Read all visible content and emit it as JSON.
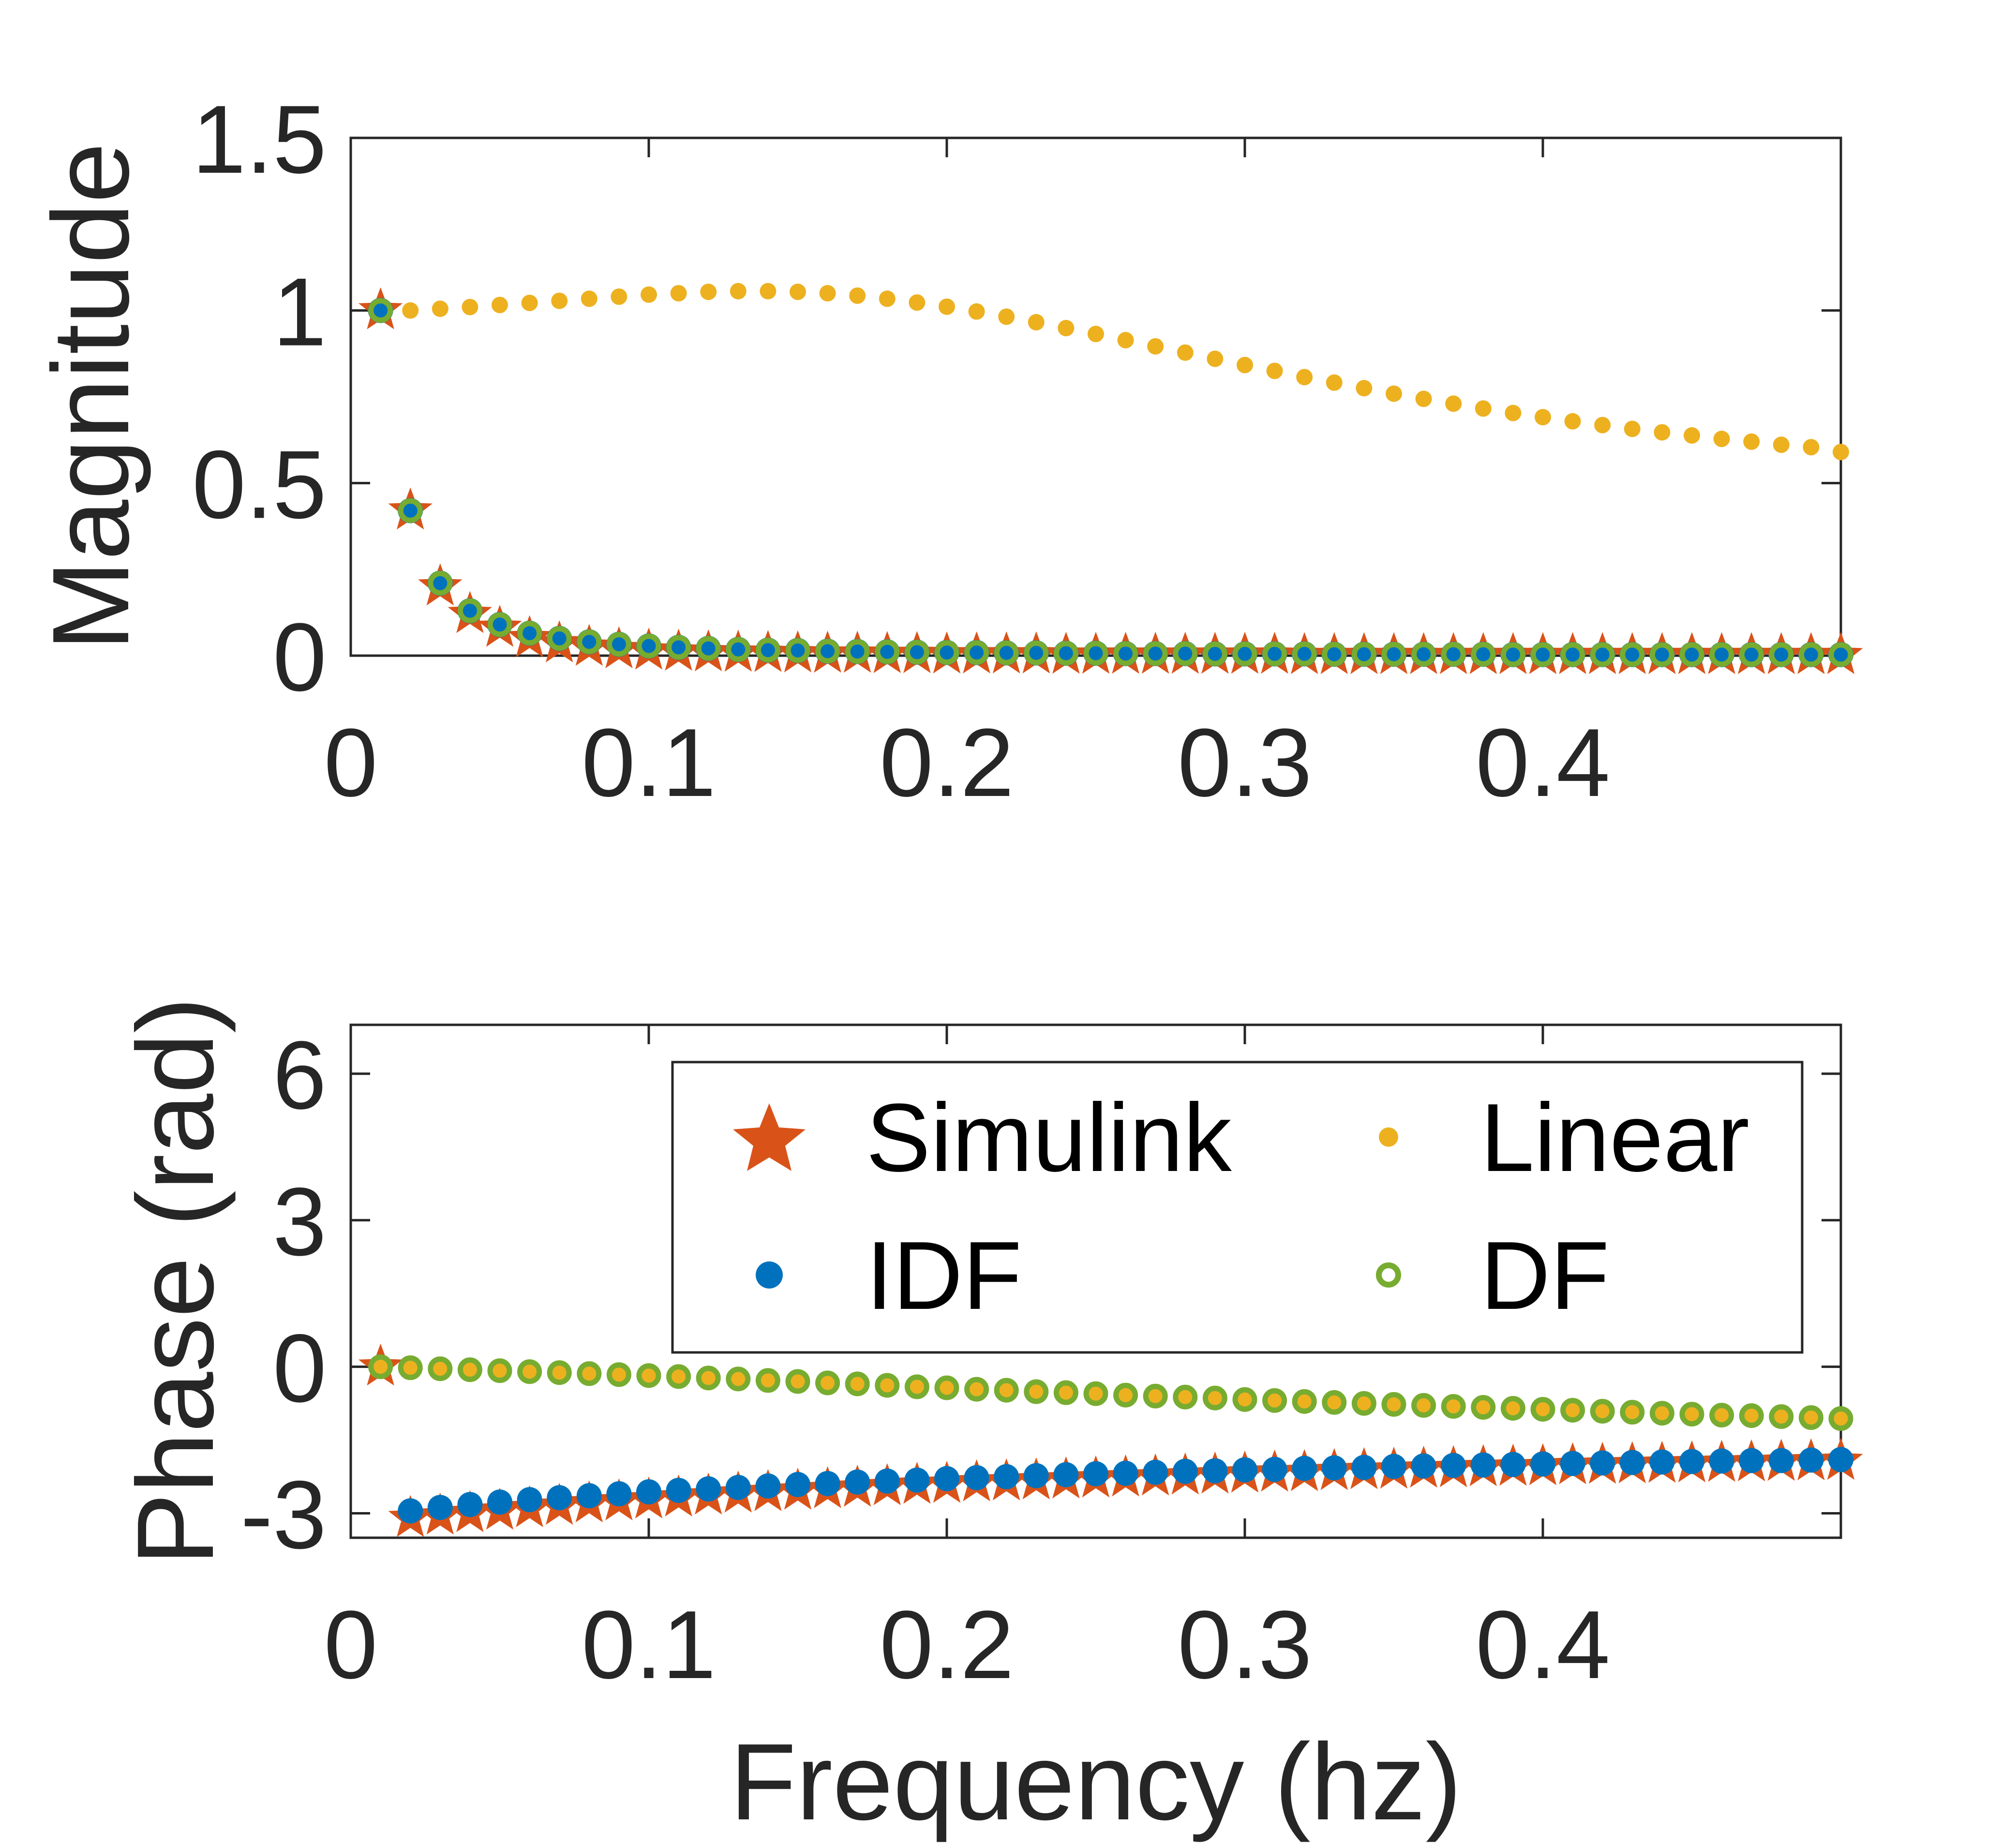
{
  "chart_data": [
    {
      "type": "scatter",
      "panel": "magnitude",
      "title": "",
      "xlabel": "",
      "ylabel": "Magnitude",
      "xlim": [
        0,
        0.5
      ],
      "ylim": [
        0,
        1.5
      ],
      "xticks": [
        0,
        0.1,
        0.2,
        0.3,
        0.4
      ],
      "xtick_labels": [
        "0",
        "0.1",
        "0.2",
        "0.3",
        "0.4"
      ],
      "yticks": [
        0,
        0.5,
        1,
        1.5
      ],
      "ytick_labels": [
        "0",
        "0.5",
        "1",
        "1.5"
      ],
      "x": [
        0.01,
        0.02,
        0.03,
        0.04,
        0.05,
        0.06,
        0.07,
        0.08,
        0.09,
        0.1,
        0.11,
        0.12,
        0.13,
        0.14,
        0.15,
        0.16,
        0.17,
        0.18,
        0.19,
        0.2,
        0.21,
        0.22,
        0.23,
        0.24,
        0.25,
        0.26,
        0.27,
        0.28,
        0.29,
        0.3,
        0.31,
        0.32,
        0.33,
        0.34,
        0.35,
        0.36,
        0.37,
        0.38,
        0.39,
        0.4,
        0.41,
        0.42,
        0.43,
        0.44,
        0.45,
        0.46,
        0.47,
        0.48,
        0.49,
        0.5
      ],
      "series": [
        {
          "name": "Simulink",
          "values": [
            1.0,
            0.42,
            0.2,
            0.12,
            0.08,
            0.05,
            0.035,
            0.025,
            0.018,
            0.014,
            0.011,
            0.009,
            0.008,
            0.007,
            0.006,
            0.005,
            0.005,
            0.004,
            0.004,
            0.003,
            0.003,
            0.003,
            0.003,
            0.002,
            0.002,
            0.002,
            0.002,
            0.002,
            0.002,
            0.002,
            0.002,
            0.001,
            0.001,
            0.001,
            0.001,
            0.001,
            0.001,
            0.001,
            0.001,
            0.001,
            0.001,
            0.001,
            0.001,
            0.001,
            0.001,
            0.001,
            0.001,
            0.001,
            0.001,
            0.001
          ]
        },
        {
          "name": "Linear",
          "values": [
            1.0,
            1.0,
            1.005,
            1.01,
            1.016,
            1.022,
            1.028,
            1.034,
            1.04,
            1.046,
            1.05,
            1.054,
            1.056,
            1.056,
            1.054,
            1.05,
            1.043,
            1.034,
            1.023,
            1.011,
            0.997,
            0.982,
            0.966,
            0.949,
            0.932,
            0.914,
            0.896,
            0.878,
            0.86,
            0.842,
            0.825,
            0.807,
            0.791,
            0.775,
            0.759,
            0.744,
            0.73,
            0.716,
            0.703,
            0.691,
            0.679,
            0.668,
            0.657,
            0.647,
            0.638,
            0.628,
            0.62,
            0.611,
            0.604,
            0.59
          ]
        },
        {
          "name": "IDF",
          "values": [
            1.0,
            0.42,
            0.21,
            0.13,
            0.09,
            0.065,
            0.05,
            0.04,
            0.033,
            0.028,
            0.024,
            0.021,
            0.018,
            0.016,
            0.015,
            0.013,
            0.012,
            0.011,
            0.01,
            0.009,
            0.009,
            0.008,
            0.008,
            0.007,
            0.007,
            0.006,
            0.006,
            0.006,
            0.005,
            0.005,
            0.005,
            0.005,
            0.004,
            0.004,
            0.004,
            0.004,
            0.004,
            0.004,
            0.003,
            0.003,
            0.003,
            0.003,
            0.003,
            0.003,
            0.003,
            0.003,
            0.003,
            0.003,
            0.003,
            0.003
          ]
        },
        {
          "name": "DF",
          "values": [
            1.0,
            0.42,
            0.21,
            0.13,
            0.09,
            0.065,
            0.05,
            0.04,
            0.033,
            0.028,
            0.024,
            0.021,
            0.018,
            0.016,
            0.015,
            0.013,
            0.012,
            0.011,
            0.01,
            0.009,
            0.009,
            0.008,
            0.008,
            0.007,
            0.007,
            0.006,
            0.006,
            0.006,
            0.005,
            0.005,
            0.005,
            0.005,
            0.004,
            0.004,
            0.004,
            0.004,
            0.004,
            0.004,
            0.003,
            0.003,
            0.003,
            0.003,
            0.003,
            0.003,
            0.003,
            0.003,
            0.003,
            0.003,
            0.003,
            0.003
          ]
        }
      ]
    },
    {
      "type": "scatter",
      "panel": "phase",
      "title": "",
      "xlabel": "Frequency (hz)",
      "ylabel": "Phase (rad)",
      "xlim": [
        0,
        0.5
      ],
      "ylim": [
        -3.5,
        7
      ],
      "xticks": [
        0,
        0.1,
        0.2,
        0.3,
        0.4
      ],
      "xtick_labels": [
        "0",
        "0.1",
        "0.2",
        "0.3",
        "0.4"
      ],
      "yticks": [
        -3,
        0,
        3,
        6
      ],
      "ytick_labels": [
        "-3",
        "0",
        "3",
        "6"
      ],
      "legend": {
        "position": "top-right",
        "columns": 2
      },
      "x": [
        0.01,
        0.02,
        0.03,
        0.04,
        0.05,
        0.06,
        0.07,
        0.08,
        0.09,
        0.1,
        0.11,
        0.12,
        0.13,
        0.14,
        0.15,
        0.16,
        0.17,
        0.18,
        0.19,
        0.2,
        0.21,
        0.22,
        0.23,
        0.24,
        0.25,
        0.26,
        0.27,
        0.28,
        0.29,
        0.3,
        0.31,
        0.32,
        0.33,
        0.34,
        0.35,
        0.36,
        0.37,
        0.38,
        0.39,
        0.4,
        0.41,
        0.42,
        0.43,
        0.44,
        0.45,
        0.46,
        0.47,
        0.48,
        0.49,
        0.5
      ],
      "series": [
        {
          "name": "Simulink",
          "values": [
            0.0,
            -3.1,
            -3.05,
            -3.0,
            -2.95,
            -2.9,
            -2.85,
            -2.8,
            -2.76,
            -2.72,
            -2.68,
            -2.64,
            -2.6,
            -2.57,
            -2.54,
            -2.51,
            -2.48,
            -2.45,
            -2.42,
            -2.4,
            -2.37,
            -2.35,
            -2.33,
            -2.31,
            -2.29,
            -2.27,
            -2.25,
            -2.23,
            -2.21,
            -2.19,
            -2.17,
            -2.16,
            -2.14,
            -2.12,
            -2.11,
            -2.09,
            -2.08,
            -2.06,
            -2.05,
            -2.04,
            -2.02,
            -2.01,
            -2.0,
            -1.99,
            -1.98,
            -1.97,
            -1.96,
            -1.95,
            -1.94,
            -1.93
          ]
        },
        {
          "name": "Linear",
          "values": [
            0.0,
            -0.02,
            -0.04,
            -0.06,
            -0.08,
            -0.1,
            -0.12,
            -0.14,
            -0.16,
            -0.18,
            -0.2,
            -0.23,
            -0.25,
            -0.28,
            -0.3,
            -0.33,
            -0.35,
            -0.38,
            -0.41,
            -0.43,
            -0.46,
            -0.48,
            -0.51,
            -0.53,
            -0.55,
            -0.58,
            -0.6,
            -0.62,
            -0.64,
            -0.67,
            -0.69,
            -0.71,
            -0.73,
            -0.75,
            -0.77,
            -0.79,
            -0.81,
            -0.83,
            -0.85,
            -0.87,
            -0.89,
            -0.91,
            -0.93,
            -0.95,
            -0.97,
            -0.99,
            -1.0,
            -1.02,
            -1.04,
            -1.06
          ]
        },
        {
          "name": "IDF",
          "values": [
            null,
            -2.95,
            -2.88,
            -2.82,
            -2.77,
            -2.72,
            -2.68,
            -2.64,
            -2.6,
            -2.56,
            -2.53,
            -2.5,
            -2.47,
            -2.44,
            -2.41,
            -2.39,
            -2.36,
            -2.34,
            -2.32,
            -2.29,
            -2.27,
            -2.25,
            -2.23,
            -2.21,
            -2.19,
            -2.18,
            -2.16,
            -2.14,
            -2.13,
            -2.11,
            -2.1,
            -2.08,
            -2.07,
            -2.06,
            -2.04,
            -2.03,
            -2.02,
            -2.01,
            -2.0,
            -1.99,
            -1.98,
            -1.97,
            -1.96,
            -1.95,
            -1.94,
            -1.93,
            -1.92,
            -1.92,
            -1.91,
            -1.9
          ]
        },
        {
          "name": "DF",
          "values": [
            0.0,
            -0.02,
            -0.04,
            -0.06,
            -0.08,
            -0.1,
            -0.12,
            -0.14,
            -0.16,
            -0.18,
            -0.2,
            -0.23,
            -0.25,
            -0.28,
            -0.3,
            -0.33,
            -0.35,
            -0.38,
            -0.41,
            -0.43,
            -0.46,
            -0.48,
            -0.51,
            -0.53,
            -0.55,
            -0.58,
            -0.6,
            -0.62,
            -0.64,
            -0.67,
            -0.69,
            -0.71,
            -0.73,
            -0.75,
            -0.77,
            -0.79,
            -0.81,
            -0.83,
            -0.85,
            -0.87,
            -0.89,
            -0.91,
            -0.93,
            -0.95,
            -0.97,
            -0.99,
            -1.0,
            -1.02,
            -1.04,
            -1.06
          ]
        }
      ]
    }
  ],
  "legend_entries": [
    "Simulink",
    "Linear",
    "IDF",
    "DF"
  ],
  "colors": {
    "Simulink": "#D95319",
    "Linear": "#EDB120",
    "IDF": "#0072BD",
    "DF": "#77AC30",
    "axis": "#262626"
  },
  "markers": {
    "Simulink": "star-icon",
    "Linear": "dot-icon",
    "IDF": "filled-circle-icon",
    "DF": "open-circle-icon"
  }
}
